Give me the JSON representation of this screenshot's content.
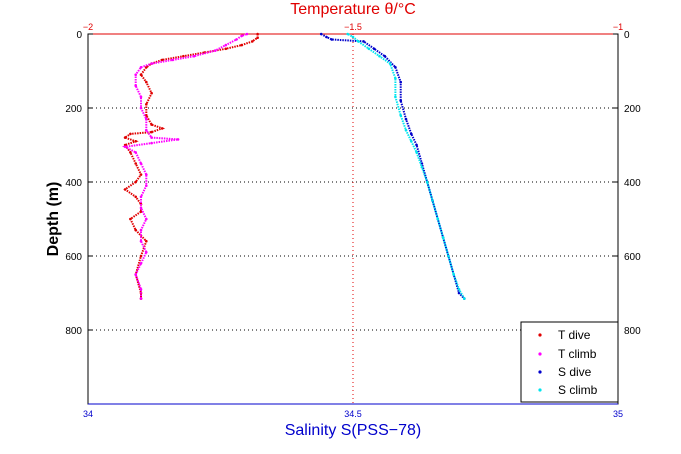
{
  "chart_data": {
    "type": "scatter",
    "title": "Temperature θ/°C",
    "ylabel": "Depth (m)",
    "xlabel": "Salinity S(PSS−78)",
    "y_axis": {
      "range": [
        0,
        1000
      ],
      "ticks": [
        0,
        200,
        400,
        600,
        800
      ],
      "inverted": true
    },
    "x_bottom": {
      "name": "Salinity",
      "range": [
        34,
        35
      ],
      "ticks": [
        "34",
        "34.5",
        "35"
      ]
    },
    "x_top": {
      "name": "Temperature",
      "range": [
        -2,
        -1
      ],
      "ticks": [
        "−2",
        "−1.5",
        "−1"
      ]
    },
    "grid": {
      "horizontal_dotted": true,
      "vertical_dotted_at_center": true
    },
    "legend_position": "bottom-right",
    "colors": {
      "t_dive": "#e00000",
      "t_climb": "#ff00ff",
      "s_dive": "#0000cc",
      "s_climb": "#00e5ee",
      "axis_bottom": "#0000cc",
      "axis_top": "#e00000"
    },
    "series": [
      {
        "name": "T dive",
        "axis": "temperature",
        "points": [
          [
            -1.68,
            0
          ],
          [
            -1.68,
            10
          ],
          [
            -1.69,
            20
          ],
          [
            -1.71,
            30
          ],
          [
            -1.74,
            40
          ],
          [
            -1.78,
            50
          ],
          [
            -1.82,
            60
          ],
          [
            -1.86,
            70
          ],
          [
            -1.88,
            80
          ],
          [
            -1.89,
            90
          ],
          [
            -1.9,
            110
          ],
          [
            -1.89,
            130
          ],
          [
            -1.88,
            160
          ],
          [
            -1.89,
            190
          ],
          [
            -1.89,
            220
          ],
          [
            -1.88,
            245
          ],
          [
            -1.86,
            255
          ],
          [
            -1.88,
            265
          ],
          [
            -1.92,
            270
          ],
          [
            -1.93,
            280
          ],
          [
            -1.91,
            290
          ],
          [
            -1.93,
            300
          ],
          [
            -1.92,
            320
          ],
          [
            -1.91,
            350
          ],
          [
            -1.9,
            380
          ],
          [
            -1.91,
            400
          ],
          [
            -1.93,
            420
          ],
          [
            -1.91,
            440
          ],
          [
            -1.9,
            460
          ],
          [
            -1.9,
            480
          ],
          [
            -1.92,
            500
          ],
          [
            -1.91,
            530
          ],
          [
            -1.89,
            560
          ],
          [
            -1.9,
            600
          ],
          [
            -1.91,
            650
          ],
          [
            -1.9,
            700
          ],
          [
            -1.9,
            715
          ]
        ]
      },
      {
        "name": "T climb",
        "axis": "temperature",
        "points": [
          [
            -1.9,
            715
          ],
          [
            -1.9,
            690
          ],
          [
            -1.91,
            650
          ],
          [
            -1.9,
            620
          ],
          [
            -1.89,
            590
          ],
          [
            -1.9,
            560
          ],
          [
            -1.9,
            530
          ],
          [
            -1.89,
            500
          ],
          [
            -1.9,
            470
          ],
          [
            -1.9,
            440
          ],
          [
            -1.89,
            410
          ],
          [
            -1.89,
            380
          ],
          [
            -1.9,
            350
          ],
          [
            -1.91,
            320
          ],
          [
            -1.93,
            305
          ],
          [
            -1.88,
            295
          ],
          [
            -1.83,
            285
          ],
          [
            -1.88,
            280
          ],
          [
            -1.89,
            260
          ],
          [
            -1.89,
            230
          ],
          [
            -1.9,
            200
          ],
          [
            -1.9,
            170
          ],
          [
            -1.91,
            140
          ],
          [
            -1.91,
            110
          ],
          [
            -1.9,
            90
          ],
          [
            -1.88,
            80
          ],
          [
            -1.84,
            70
          ],
          [
            -1.8,
            60
          ],
          [
            -1.76,
            45
          ],
          [
            -1.74,
            30
          ],
          [
            -1.72,
            15
          ],
          [
            -1.71,
            5
          ],
          [
            -1.7,
            0
          ]
        ]
      },
      {
        "name": "S dive",
        "axis": "salinity",
        "points": [
          [
            34.44,
            0
          ],
          [
            34.45,
            8
          ],
          [
            34.46,
            15
          ],
          [
            34.52,
            20
          ],
          [
            34.54,
            40
          ],
          [
            34.56,
            60
          ],
          [
            34.58,
            90
          ],
          [
            34.59,
            130
          ],
          [
            34.59,
            180
          ],
          [
            34.6,
            230
          ],
          [
            34.61,
            270
          ],
          [
            34.62,
            300
          ],
          [
            34.63,
            350
          ],
          [
            34.64,
            400
          ],
          [
            34.65,
            450
          ],
          [
            34.66,
            500
          ],
          [
            34.67,
            550
          ],
          [
            34.68,
            600
          ],
          [
            34.69,
            650
          ],
          [
            34.7,
            700
          ],
          [
            34.71,
            715
          ]
        ]
      },
      {
        "name": "S climb",
        "axis": "salinity",
        "points": [
          [
            34.71,
            715
          ],
          [
            34.7,
            690
          ],
          [
            34.69,
            650
          ],
          [
            34.68,
            600
          ],
          [
            34.67,
            550
          ],
          [
            34.66,
            500
          ],
          [
            34.65,
            450
          ],
          [
            34.64,
            400
          ],
          [
            34.63,
            360
          ],
          [
            34.62,
            320
          ],
          [
            34.61,
            290
          ],
          [
            34.6,
            260
          ],
          [
            34.59,
            220
          ],
          [
            34.58,
            170
          ],
          [
            34.58,
            120
          ],
          [
            34.57,
            80
          ],
          [
            34.55,
            60
          ],
          [
            34.53,
            40
          ],
          [
            34.51,
            20
          ],
          [
            34.5,
            8
          ],
          [
            34.49,
            0
          ]
        ]
      }
    ]
  }
}
